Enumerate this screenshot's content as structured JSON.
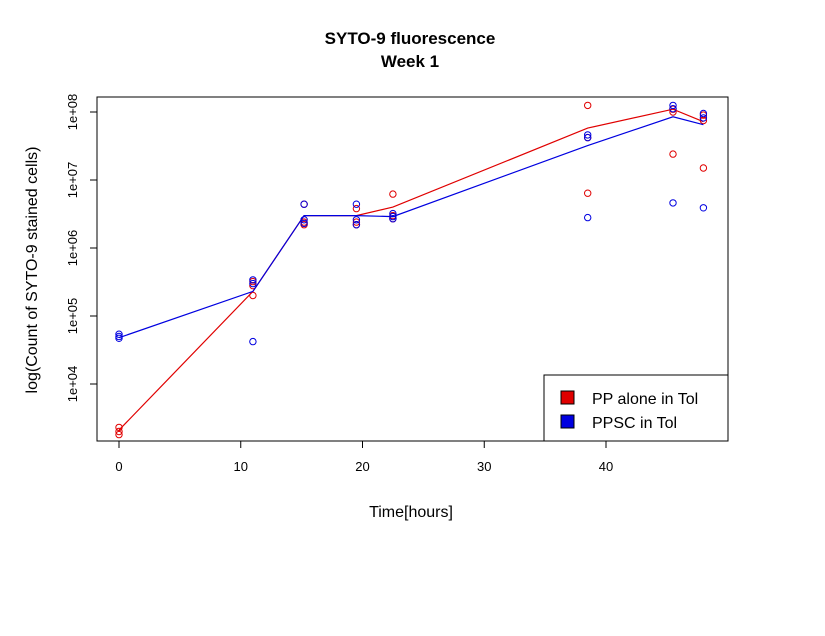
{
  "chart_data": {
    "type": "scatter",
    "title": "SYTO-9 fluorescence",
    "subtitle": "Week 1",
    "xlabel": "Time[hours]",
    "ylabel": "log(Count of SYTO-9 stained cells)",
    "xlim": [
      0,
      50
    ],
    "ylim": [
      1000,
      100000000
    ],
    "y_scale": "log",
    "x_ticks": [
      0,
      10,
      20,
      30,
      40
    ],
    "x_tick_labels": [
      "0",
      "10",
      "20",
      "30",
      "40"
    ],
    "y_ticks": [
      10000,
      100000,
      1000000,
      10000000,
      100000000
    ],
    "y_tick_labels": [
      "1e+04",
      "1e+05",
      "1e+06",
      "1e+07",
      "1e+08"
    ],
    "grid": false,
    "legend_position": "bottom-right",
    "series": [
      {
        "name": "PP alone in Tol",
        "color": "#e00000",
        "points": [
          [
            0,
            2300
          ],
          [
            0,
            2000
          ],
          [
            0,
            1800
          ],
          [
            11,
            200000
          ],
          [
            11,
            280000
          ],
          [
            11,
            320000
          ],
          [
            15.2,
            4400000
          ],
          [
            15.2,
            2400000
          ],
          [
            15.2,
            2200000
          ],
          [
            19.5,
            3800000
          ],
          [
            19.5,
            2400000
          ],
          [
            19.5,
            2200000
          ],
          [
            22.5,
            6200000
          ],
          [
            22.5,
            3000000
          ],
          [
            22.5,
            2700000
          ],
          [
            38.5,
            125000000
          ],
          [
            38.5,
            42000000
          ],
          [
            38.5,
            6400000
          ],
          [
            45.5,
            110000000
          ],
          [
            45.5,
            100000000
          ],
          [
            45.5,
            24000000
          ],
          [
            48,
            90000000
          ],
          [
            48,
            75000000
          ],
          [
            48,
            15000000
          ]
        ],
        "line": [
          [
            0,
            2100
          ],
          [
            11,
            230000
          ],
          [
            15.2,
            3000000
          ],
          [
            19.5,
            3000000
          ],
          [
            22.5,
            4000000
          ],
          [
            38.5,
            58000000
          ],
          [
            45.5,
            110000000
          ],
          [
            48,
            72000000
          ]
        ]
      },
      {
        "name": "PPSC in Tol",
        "color": "#0000e0",
        "points": [
          [
            0,
            54000
          ],
          [
            0,
            50000
          ],
          [
            0,
            47000
          ],
          [
            11,
            340000
          ],
          [
            11,
            300000
          ],
          [
            11,
            42000
          ],
          [
            15.2,
            4400000
          ],
          [
            15.2,
            2600000
          ],
          [
            15.2,
            2300000
          ],
          [
            19.5,
            4400000
          ],
          [
            19.5,
            2600000
          ],
          [
            19.5,
            2200000
          ],
          [
            22.5,
            3200000
          ],
          [
            22.5,
            2900000
          ],
          [
            22.5,
            2700000
          ],
          [
            38.5,
            46000000
          ],
          [
            38.5,
            42000000
          ],
          [
            38.5,
            2800000
          ],
          [
            45.5,
            125000000
          ],
          [
            45.5,
            112000000
          ],
          [
            45.5,
            4600000
          ],
          [
            48,
            95000000
          ],
          [
            48,
            82000000
          ],
          [
            48,
            3900000
          ]
        ],
        "line": [
          [
            0,
            48000
          ],
          [
            11,
            230000
          ],
          [
            15.2,
            3000000
          ],
          [
            19.5,
            3000000
          ],
          [
            22.5,
            2900000
          ],
          [
            38.5,
            32000000
          ],
          [
            45.5,
            85000000
          ],
          [
            48,
            65000000
          ]
        ]
      }
    ]
  }
}
